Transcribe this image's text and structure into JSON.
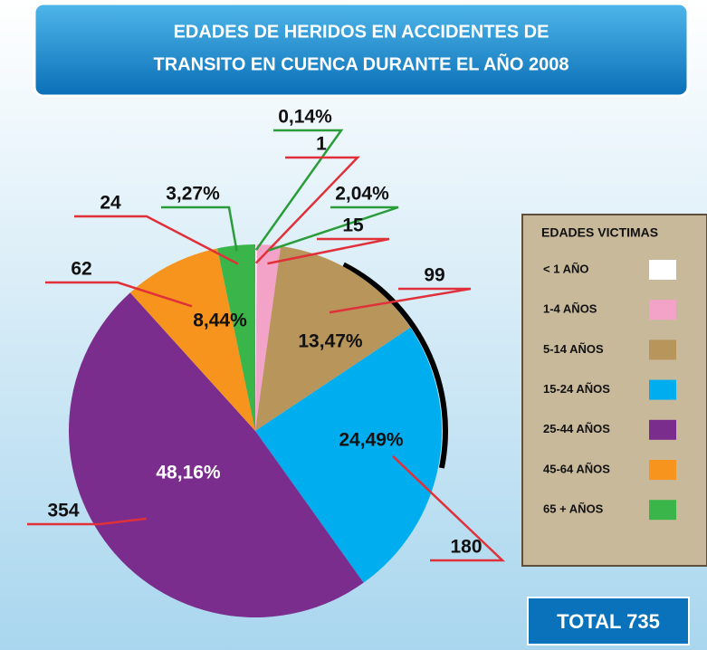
{
  "chart_data": {
    "type": "pie",
    "title": [
      "EDADES DE HERIDOS EN ACCIDENTES DE",
      "TRANSITO EN CUENCA DURANTE EL AÑO 2008"
    ],
    "legend_title": "EDADES VICTIMAS",
    "categories": [
      "< 1 AÑO",
      "1-4 AÑOS",
      "5-14 AÑOS",
      "15-24 AÑOS",
      "25-44 AÑOS",
      "45-64 AÑOS",
      "65 + AÑOS"
    ],
    "values": [
      1,
      15,
      99,
      180,
      354,
      62,
      24
    ],
    "percent_values": [
      0.14,
      2.04,
      13.47,
      24.49,
      48.16,
      8.44,
      3.27
    ],
    "percent_labels": [
      "0,14%",
      "2,04%",
      "13,47%",
      "24,49%",
      "48,16%",
      "8,44%",
      "3,27%"
    ],
    "colors": [
      "#ffffff",
      "#f4a3c8",
      "#b8955a",
      "#00aeef",
      "#7b2d8e",
      "#f7941d",
      "#39b54a"
    ],
    "total_label": "TOTAL",
    "total": 735
  }
}
